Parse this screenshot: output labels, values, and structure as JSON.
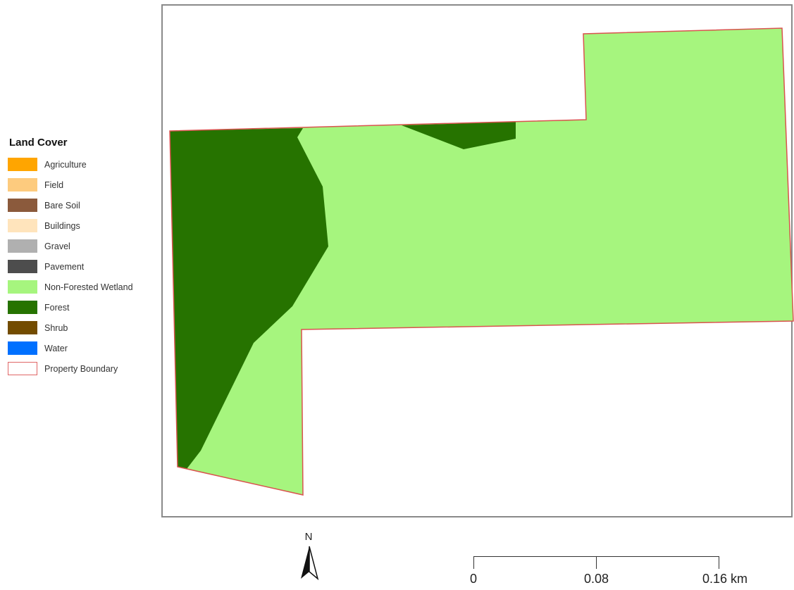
{
  "legend": {
    "title": "Land Cover",
    "items": [
      {
        "label": "Agriculture",
        "color": "#FFA500",
        "border": "none"
      },
      {
        "label": "Field",
        "color": "#FDCB7E",
        "border": "none"
      },
      {
        "label": "Bare Soil",
        "color": "#8B5A3C",
        "border": "none"
      },
      {
        "label": "Buildings",
        "color": "#FFE4BC",
        "border": "none"
      },
      {
        "label": "Gravel",
        "color": "#B0B0B0",
        "border": "none"
      },
      {
        "label": "Pavement",
        "color": "#4D4D4D",
        "border": "none"
      },
      {
        "label": "Non-Forested Wetland",
        "color": "#A6F57E",
        "border": "none"
      },
      {
        "label": "Forest",
        "color": "#267300",
        "border": "none"
      },
      {
        "label": "Shrub",
        "color": "#734C00",
        "border": "none"
      },
      {
        "label": "Water",
        "color": "#0070FF",
        "border": "none"
      },
      {
        "label": "Property Boundary",
        "color": "#FFFFFF",
        "border": "#E06666"
      }
    ]
  },
  "map": {
    "wetland_color": "#A6F57E",
    "forest_color": "#267300",
    "boundary_color": "#D9534F",
    "frame_color": "#8A8A8A"
  },
  "north_arrow": {
    "label": "N"
  },
  "scale_bar": {
    "labels": [
      "0",
      "0.08",
      "0.16 km"
    ]
  }
}
